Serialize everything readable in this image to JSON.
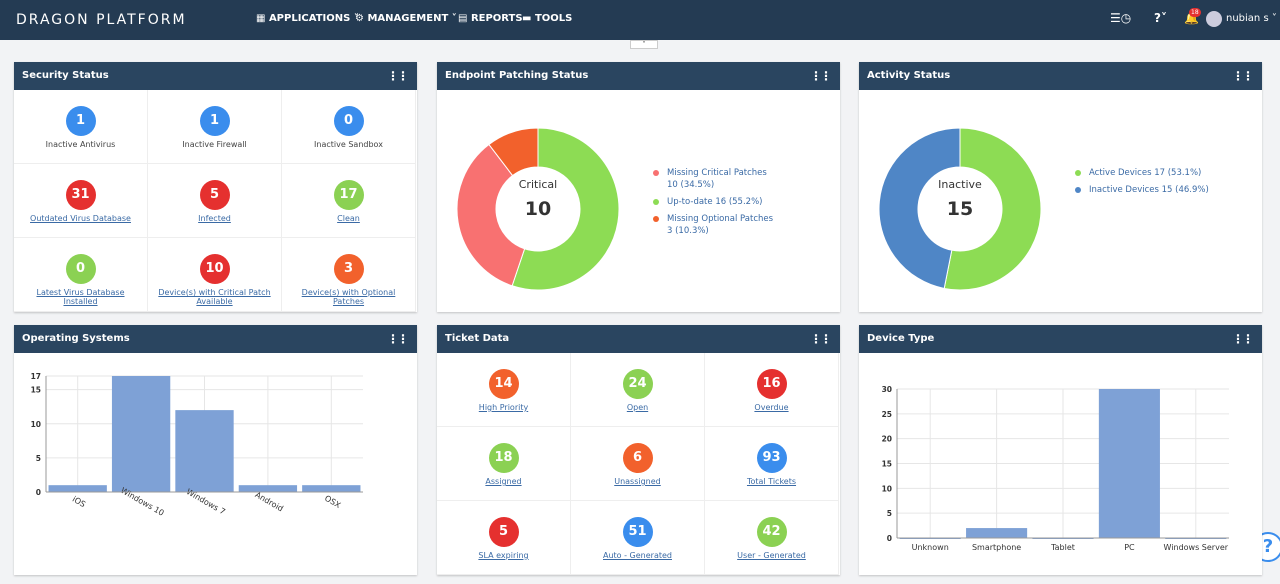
{
  "header": {
    "brand": "DRAGON PLATFORM",
    "nav": [
      "APPLICATIONS",
      "MANAGEMENT",
      "REPORTS",
      "TOOLS"
    ],
    "notification_count": 18,
    "user": "nubian s"
  },
  "security": {
    "title": "Security Status",
    "items": [
      {
        "count": 1,
        "label": "Inactive Antivirus",
        "color": "#3a8ded",
        "link": false
      },
      {
        "count": 1,
        "label": "Inactive Firewall",
        "color": "#3a8ded",
        "link": false
      },
      {
        "count": 0,
        "label": "Inactive Sandbox",
        "color": "#3a8ded",
        "link": false
      },
      {
        "count": 31,
        "label": "Outdated Virus Database",
        "color": "#e5302f",
        "link": true
      },
      {
        "count": 5,
        "label": "Infected",
        "color": "#e5302f",
        "link": true
      },
      {
        "count": 17,
        "label": "Clean",
        "color": "#8bd153",
        "link": true
      },
      {
        "count": 0,
        "label": "Latest Virus Database Installed",
        "color": "#8bd153",
        "link": true
      },
      {
        "count": 10,
        "label": "Device(s) with Critical Patch Available",
        "color": "#e5302f",
        "link": true
      },
      {
        "count": 3,
        "label": "Device(s) with Optional Patches",
        "color": "#f2612c",
        "link": true
      }
    ]
  },
  "patching": {
    "title": "Endpoint Patching Status",
    "chart": {
      "type": "donut",
      "center_label": "Critical",
      "center_value": 10,
      "slices": [
        {
          "name": "Missing Critical Patches",
          "value": 10,
          "label": "10 (34.5%)",
          "color": "#f87171"
        },
        {
          "name": "Up-to-date",
          "value": 16,
          "label": "16 (55.2%)",
          "color": "#8ddc54"
        },
        {
          "name": "Missing Optional Patches",
          "value": 3,
          "label": "3 (10.3%)",
          "color": "#f2612c"
        }
      ]
    }
  },
  "activity": {
    "title": "Activity Status",
    "chart": {
      "type": "donut",
      "center_label": "Inactive",
      "center_value": 15,
      "slices": [
        {
          "name": "Active Devices",
          "value": 17,
          "label": "17 (53.1%)",
          "color": "#8ddc54"
        },
        {
          "name": "Inactive Devices",
          "value": 15,
          "label": "15 (46.9%)",
          "color": "#4f86c6"
        }
      ]
    }
  },
  "os": {
    "title": "Operating Systems",
    "chart": {
      "type": "bar",
      "categories": [
        "iOS",
        "Windows 10",
        "Windows 7",
        "Android",
        "OSX"
      ],
      "values": [
        1,
        17,
        12,
        1,
        1
      ],
      "color": "#7ea1d6",
      "ylim": [
        0,
        17
      ],
      "yticks": [
        0,
        5,
        10,
        15,
        17
      ],
      "grid": true,
      "rotate_labels": true
    }
  },
  "tickets": {
    "title": "Ticket Data",
    "items": [
      {
        "count": 14,
        "label": "High Priority",
        "color": "#f2612c",
        "link": true
      },
      {
        "count": 24,
        "label": "Open",
        "color": "#8bd153",
        "link": true
      },
      {
        "count": 16,
        "label": "Overdue",
        "color": "#e5302f",
        "link": true
      },
      {
        "count": 18,
        "label": "Assigned",
        "color": "#8bd153",
        "link": true
      },
      {
        "count": 6,
        "label": "Unassigned",
        "color": "#f2612c",
        "link": true
      },
      {
        "count": 93,
        "label": "Total Tickets",
        "color": "#3a8ded",
        "link": true
      },
      {
        "count": 5,
        "label": "SLA expiring",
        "color": "#e5302f",
        "link": true
      },
      {
        "count": 51,
        "label": "Auto - Generated",
        "color": "#3a8ded",
        "link": true
      },
      {
        "count": 42,
        "label": "User - Generated",
        "color": "#8bd153",
        "link": true
      }
    ]
  },
  "devices": {
    "title": "Device Type",
    "chart": {
      "type": "bar",
      "categories": [
        "Unknown",
        "Smartphone",
        "Tablet",
        "PC",
        "Windows Server"
      ],
      "values": [
        0,
        2,
        0,
        30,
        0
      ],
      "color": "#7ea1d6",
      "ylim": [
        0,
        30
      ],
      "yticks": [
        0,
        5,
        10,
        15,
        20,
        25,
        30
      ],
      "grid": true,
      "rotate_labels": false
    }
  }
}
